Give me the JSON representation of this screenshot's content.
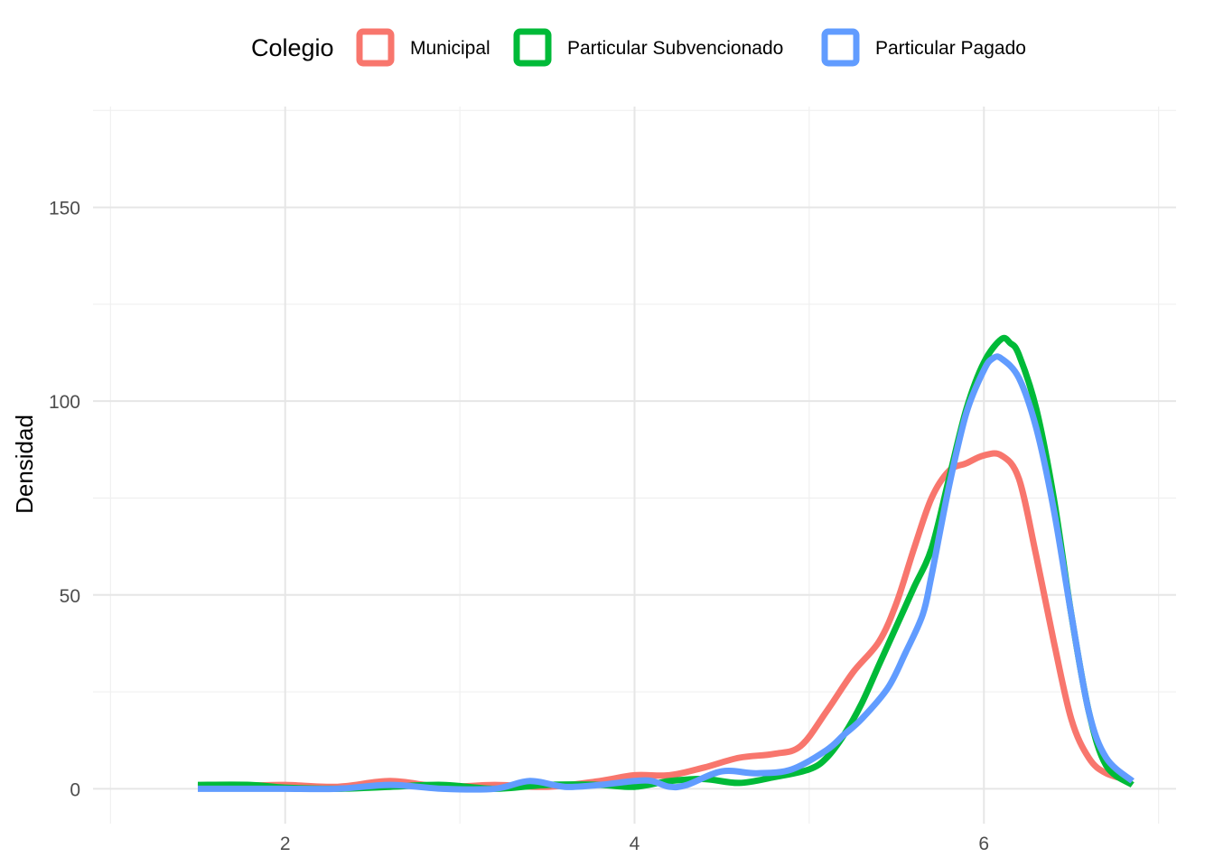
{
  "chart_data": {
    "type": "line",
    "title": "",
    "xlabel": "",
    "ylabel": "Densidad",
    "xlim": [
      0.9,
      7.1
    ],
    "ylim": [
      -9,
      176
    ],
    "x_ticks": [
      2,
      4,
      6
    ],
    "y_ticks": [
      0,
      50,
      100,
      150
    ],
    "grid": true,
    "legend": {
      "title": "Colegio",
      "position": "top"
    },
    "series": [
      {
        "name": "Municipal",
        "color": "#F8766D",
        "x": [
          1.5,
          1.8,
          2.0,
          2.3,
          2.6,
          2.9,
          3.2,
          3.5,
          3.8,
          4.0,
          4.2,
          4.4,
          4.6,
          4.8,
          4.95,
          5.1,
          5.25,
          5.4,
          5.5,
          5.6,
          5.7,
          5.8,
          5.9,
          6.0,
          6.1,
          6.2,
          6.3,
          6.4,
          6.5,
          6.6,
          6.7,
          6.85
        ],
        "y": [
          0.5,
          0.8,
          1,
          0.5,
          2,
          0.5,
          1,
          0.5,
          2,
          3.5,
          3.5,
          5.5,
          8,
          9,
          11,
          20,
          30,
          38,
          48,
          62,
          75,
          82,
          84,
          86,
          86,
          80,
          60,
          38,
          18,
          8,
          4,
          2
        ]
      },
      {
        "name": "Particular Subvencionado",
        "color": "#00BA38",
        "x": [
          1.5,
          1.8,
          2.0,
          2.3,
          2.6,
          2.9,
          3.2,
          3.5,
          3.8,
          4.0,
          4.2,
          4.4,
          4.6,
          4.8,
          5.0,
          5.1,
          5.2,
          5.3,
          5.4,
          5.5,
          5.6,
          5.7,
          5.8,
          5.9,
          6.0,
          6.1,
          6.15,
          6.2,
          6.3,
          6.4,
          6.5,
          6.6,
          6.7,
          6.85
        ],
        "y": [
          1,
          1,
          0.3,
          0,
          0.5,
          1,
          0,
          1,
          1,
          0.5,
          2,
          2.5,
          1.5,
          3,
          5,
          8,
          14,
          22,
          32,
          42,
          52,
          62,
          80,
          98,
          110,
          116,
          115,
          112,
          98,
          75,
          45,
          20,
          6,
          1
        ]
      },
      {
        "name": "Particular Pagado",
        "color": "#619CFF",
        "x": [
          1.5,
          1.8,
          2.0,
          2.3,
          2.6,
          2.9,
          3.2,
          3.4,
          3.6,
          3.8,
          4.0,
          4.1,
          4.2,
          4.3,
          4.5,
          4.7,
          4.9,
          5.1,
          5.2,
          5.3,
          5.45,
          5.55,
          5.65,
          5.7,
          5.8,
          5.9,
          6.0,
          6.05,
          6.1,
          6.2,
          6.3,
          6.4,
          6.5,
          6.6,
          6.7,
          6.85
        ],
        "y": [
          0,
          0,
          0,
          0,
          1,
          0,
          0,
          2,
          0.5,
          1,
          2,
          2,
          0.5,
          1,
          4.5,
          4,
          5,
          10,
          14,
          18,
          26,
          35,
          45,
          55,
          78,
          97,
          108,
          111,
          111,
          106,
          93,
          72,
          45,
          20,
          8,
          2
        ]
      }
    ]
  }
}
